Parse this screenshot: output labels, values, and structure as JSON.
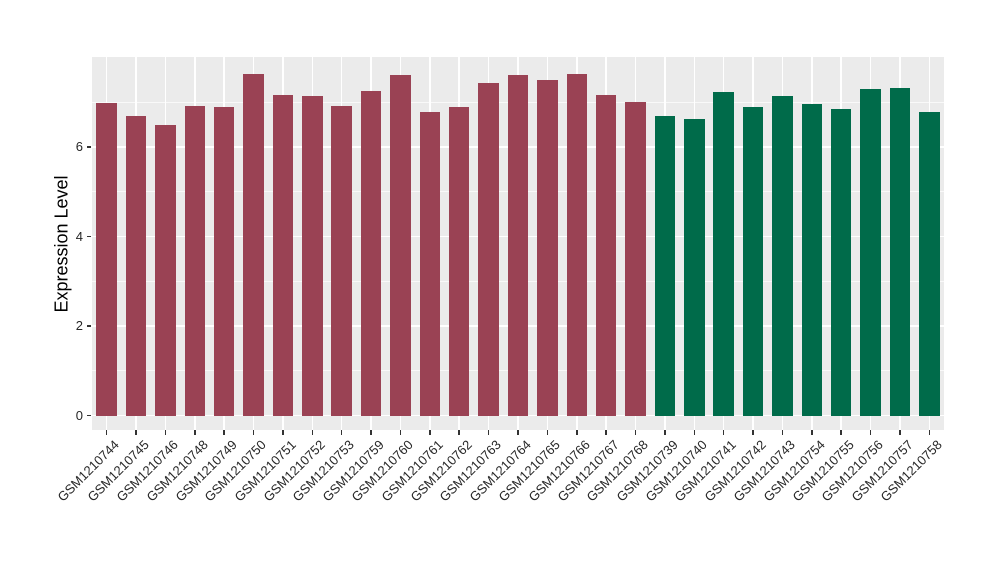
{
  "chart_data": {
    "type": "bar",
    "title": "",
    "xlabel": "",
    "ylabel": "Expression Level",
    "ylim": [
      0,
      8
    ],
    "yticks": [
      0,
      2,
      4,
      6
    ],
    "yticks_minor": [
      1,
      3,
      5,
      7
    ],
    "grid": "on",
    "legend_position": "none",
    "panel_background_color": "#EBEBEB",
    "gridline_color": "#FFFFFF",
    "tick_text_color": "#262626",
    "categories": [
      "GSM1210744",
      "GSM1210745",
      "GSM1210746",
      "GSM1210748",
      "GSM1210749",
      "GSM1210750",
      "GSM1210751",
      "GSM1210752",
      "GSM1210753",
      "GSM1210759",
      "GSM1210760",
      "GSM1210761",
      "GSM1210762",
      "GSM1210763",
      "GSM1210764",
      "GSM1210765",
      "GSM1210766",
      "GSM1210767",
      "GSM1210768",
      "GSM1210739",
      "GSM1210740",
      "GSM1210741",
      "GSM1210742",
      "GSM1210743",
      "GSM1210754",
      "GSM1210755",
      "GSM1210756",
      "GSM1210757",
      "GSM1210758"
    ],
    "values": [
      6.98,
      6.69,
      6.5,
      6.92,
      6.9,
      7.63,
      7.16,
      7.14,
      6.91,
      7.25,
      7.61,
      6.79,
      6.9,
      7.43,
      7.61,
      7.5,
      7.63,
      7.17,
      7.01,
      6.69,
      6.62,
      7.22,
      6.88,
      7.14,
      6.96,
      6.85,
      7.3,
      7.31,
      6.78
    ],
    "bar_groups": [
      "g1",
      "g1",
      "g1",
      "g1",
      "g1",
      "g1",
      "g1",
      "g1",
      "g1",
      "g1",
      "g1",
      "g1",
      "g1",
      "g1",
      "g1",
      "g1",
      "g1",
      "g1",
      "g1",
      "g2",
      "g2",
      "g2",
      "g2",
      "g2",
      "g2",
      "g2",
      "g2",
      "g2",
      "g2"
    ],
    "group_colors": {
      "g1": "#9A4254",
      "g2": "#006B4A"
    }
  }
}
